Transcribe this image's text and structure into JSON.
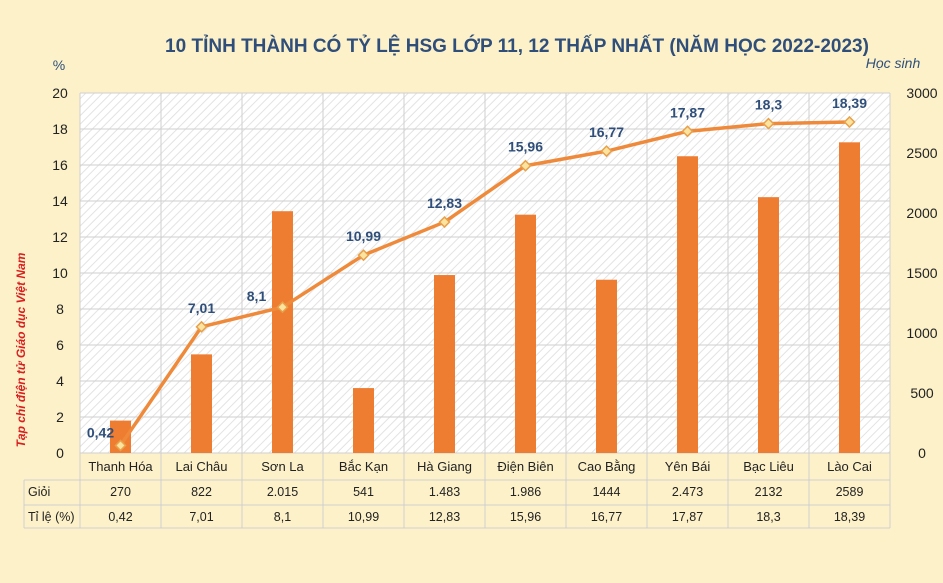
{
  "chart_data": {
    "type": "bar+line",
    "title": "10 TỈNH THÀNH CÓ TỶ LỆ HSG LỚP 11, 12 THẤP NHẤT (NĂM HỌC 2022-2023)",
    "y_left_unit": "%",
    "y_right_unit": "Học sinh",
    "source_note": "Tạp chí điện tử Giáo dục Việt Nam",
    "categories": [
      "Thanh Hóa",
      "Lai Châu",
      "Sơn La",
      "Bắc Kạn",
      "Hà Giang",
      "Điện Biên",
      "Cao Bằng",
      "Yên Bái",
      "Bạc Liêu",
      "Lào Cai"
    ],
    "series": [
      {
        "name": "Giỏi",
        "type": "bar",
        "axis": "right",
        "values": [
          270,
          822,
          2015,
          541,
          1483,
          1986,
          1444,
          2473,
          2132,
          2589
        ],
        "display": [
          "270",
          "822",
          "2.015",
          "541",
          "1.483",
          "1.986",
          "1444",
          "2.473",
          "2132",
          "2589"
        ]
      },
      {
        "name": "Tỉ lệ (%)",
        "type": "line",
        "axis": "left",
        "values": [
          0.42,
          7.01,
          8.1,
          10.99,
          12.83,
          15.96,
          16.77,
          17.87,
          18.3,
          18.39
        ],
        "display": [
          "0,42",
          "7,01",
          "8,1",
          "10,99",
          "12,83",
          "15,96",
          "16,77",
          "17,87",
          "18,3",
          "18,39"
        ]
      }
    ],
    "ylim_left": [
      0,
      20
    ],
    "yticks_left": [
      0,
      2,
      4,
      6,
      8,
      10,
      12,
      14,
      16,
      18,
      20
    ],
    "ylim_right": [
      0,
      3000
    ],
    "yticks_right": [
      0,
      500,
      1000,
      1500,
      2000,
      2500,
      3000
    ],
    "grid": true,
    "bar_color": "#ef7d31",
    "line_color": "#ef8a3a",
    "marker_color": "#fbe3a0",
    "title_color": "#2f4f7a"
  }
}
